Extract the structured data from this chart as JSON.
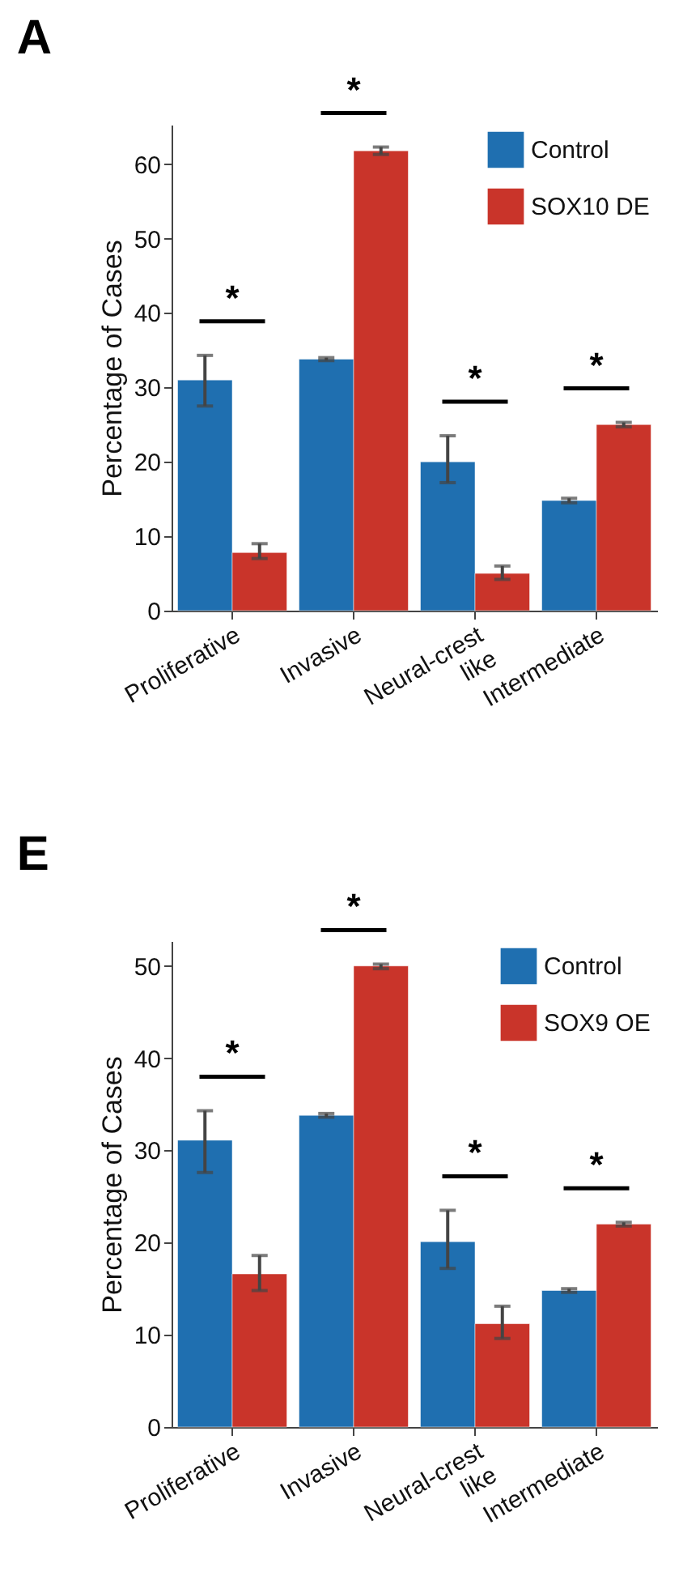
{
  "chart_data": [
    {
      "type": "bar",
      "title": "A",
      "ylabel": "Percentage of Cases",
      "categories": [
        "Proliferative",
        "Invasive",
        "Neural-crest like",
        "Intermediate"
      ],
      "series": [
        {
          "name": "Control",
          "color": "#1f6fb0",
          "values": [
            31,
            33.8,
            20,
            14.8
          ],
          "errors": [
            [
              27.5,
              34.3
            ],
            [
              33.6,
              34
            ],
            [
              17.2,
              23.5
            ],
            [
              14.5,
              15.1
            ]
          ]
        },
        {
          "name": "SOX10 DE",
          "color": "#c9342a",
          "values": [
            7.8,
            61.8,
            5,
            25
          ],
          "errors": [
            [
              7,
              9
            ],
            [
              61.3,
              62.3
            ],
            [
              4.2,
              6
            ],
            [
              24.7,
              25.3
            ]
          ]
        }
      ],
      "ylim": [
        0,
        65.3
      ],
      "yticks": [
        0,
        10,
        20,
        30,
        40,
        50,
        60
      ],
      "grid": false,
      "legend": "top right",
      "annotations": [
        "*",
        "*",
        "*",
        "*"
      ]
    },
    {
      "type": "bar",
      "title": "E",
      "ylabel": "Percentage of Cases",
      "categories": [
        "Proliferative",
        "Invasive",
        "Neural-crest like",
        "Intermediate"
      ],
      "series": [
        {
          "name": "Control",
          "color": "#1f6fb0",
          "values": [
            31.1,
            33.8,
            20.1,
            14.8
          ],
          "errors": [
            [
              27.6,
              34.3
            ],
            [
              33.6,
              34
            ],
            [
              17.2,
              23.5
            ],
            [
              14.6,
              15
            ]
          ]
        },
        {
          "name": "SOX9 OE",
          "color": "#c9342a",
          "values": [
            16.6,
            50,
            11.2,
            22
          ],
          "errors": [
            [
              14.8,
              18.6
            ],
            [
              49.7,
              50.2
            ],
            [
              9.6,
              13.1
            ],
            [
              21.8,
              22.2
            ]
          ]
        }
      ],
      "ylim": [
        0,
        52.7
      ],
      "yticks": [
        0,
        10,
        20,
        30,
        40,
        50
      ],
      "grid": false,
      "legend": "top right",
      "annotations": [
        "*",
        "*",
        "*",
        "*"
      ]
    }
  ]
}
